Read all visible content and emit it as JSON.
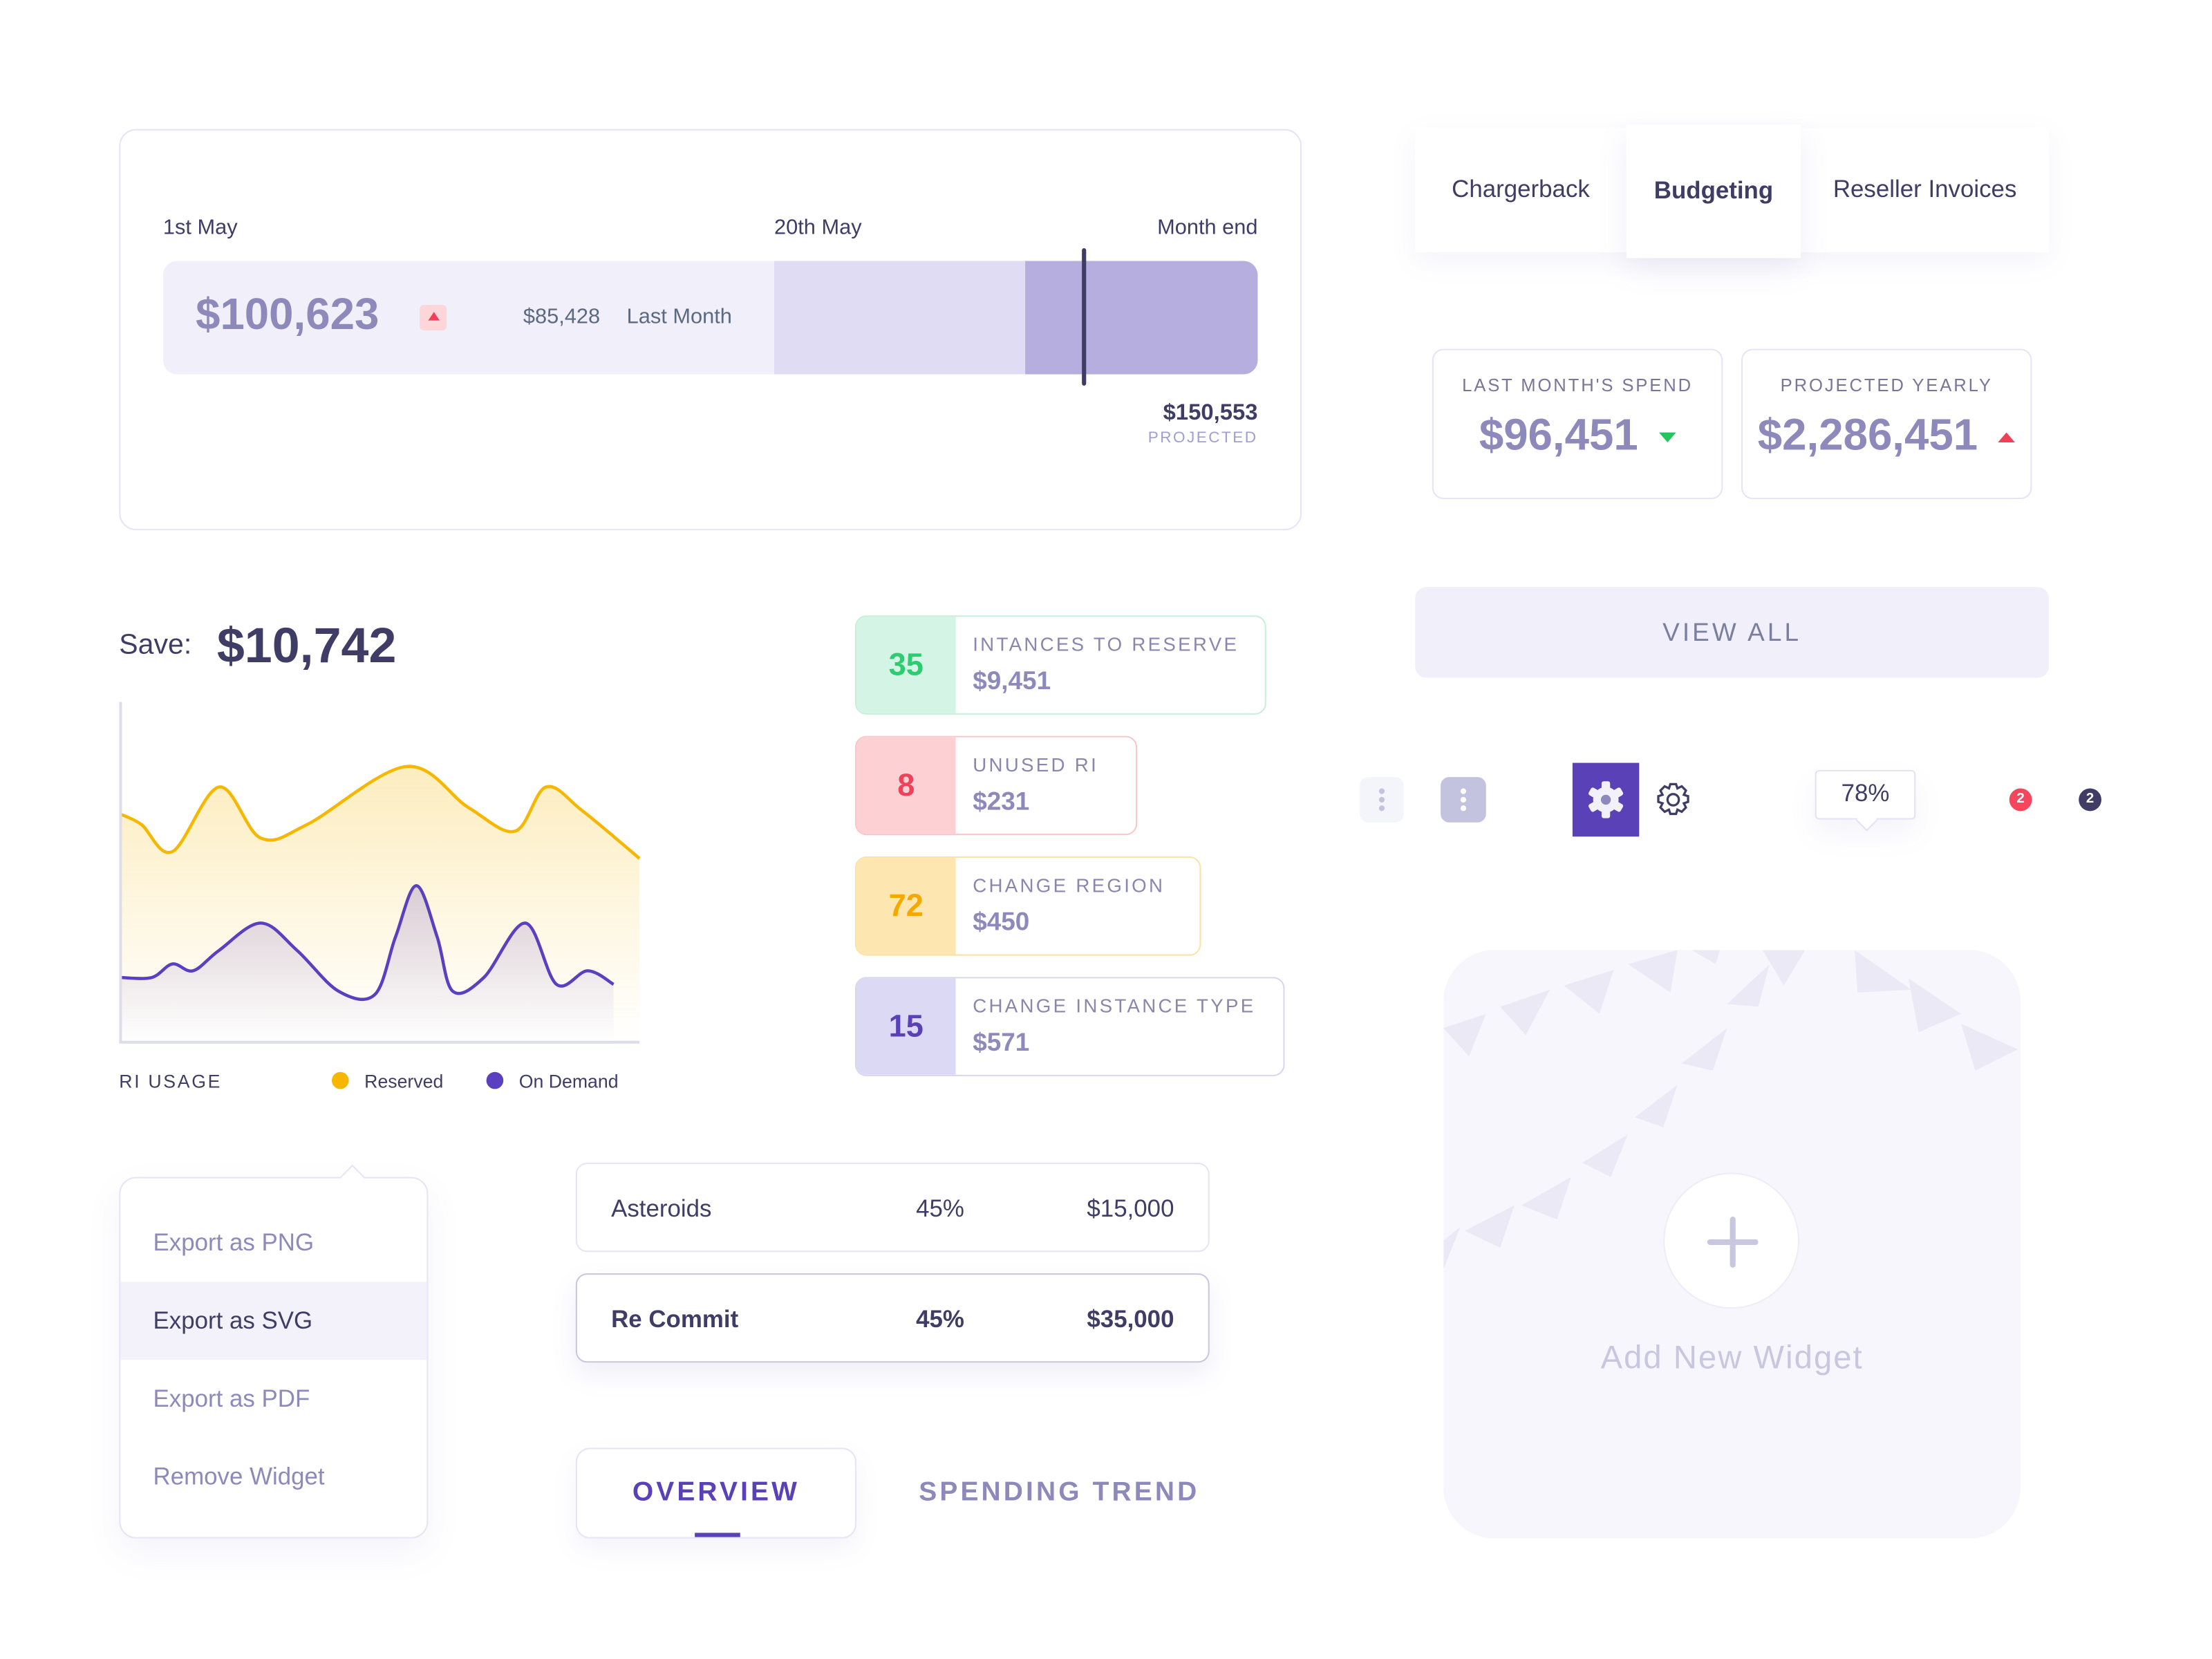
{
  "budget_card": {
    "start_label": "1st May",
    "mid_label": "20th May",
    "end_label": "Month end",
    "current_spend": "$100,623",
    "last_month_value": "$85,428",
    "last_month_label": "Last Month",
    "projected_value": "$150,553",
    "projected_label": "PROJECTED",
    "colors": {
      "track": "#f1eff9",
      "elapsed": "#e0dcf3",
      "projected": "#b6aedf",
      "marker": "#3f3d66"
    }
  },
  "tabs": [
    {
      "label": "Chargerback",
      "active": false
    },
    {
      "label": "Budgeting",
      "active": true
    },
    {
      "label": "Reseller Invoices",
      "active": false
    }
  ],
  "stats": [
    {
      "title": "LAST MONTH'S SPEND",
      "value": "$96,451",
      "trend": "down",
      "color": "#22c55e"
    },
    {
      "title": "PROJECTED YEARLY",
      "value": "$2,286,451",
      "trend": "up",
      "color": "#f0405a"
    }
  ],
  "view_all_label": "VIEW ALL",
  "icons_row": {
    "tooltip_value": "78%",
    "badge_red": "2",
    "badge_dark": "2",
    "accent": "#5a41b8"
  },
  "save": {
    "label": "Save:",
    "value": "$10,742"
  },
  "chart_data": {
    "type": "area",
    "title": "RI USAGE",
    "xlabel": "",
    "ylabel": "",
    "x": [
      0,
      4,
      10,
      19,
      27,
      36,
      55,
      67,
      76,
      82,
      89,
      100
    ],
    "ylim": [
      0,
      100
    ],
    "grid": false,
    "legend_placement": "bottom",
    "series": [
      {
        "name": "Reserved",
        "color": "#f5b700",
        "x": [
          0,
          4,
          10,
          19,
          27,
          36,
          55,
          67,
          76,
          82,
          89,
          100
        ],
        "values": [
          67,
          64,
          56,
          75,
          60,
          64,
          81,
          69,
          62,
          75,
          68,
          54
        ]
      },
      {
        "name": "On Demand",
        "color": "#5a3fc0",
        "x": [
          0,
          6,
          10,
          14,
          19,
          27,
          34,
          42,
          49,
          53,
          57,
          61,
          64,
          70,
          78,
          84,
          90,
          95
        ],
        "values": [
          19,
          19,
          23,
          21,
          27,
          35,
          27,
          15,
          14,
          31,
          46,
          31,
          15,
          19,
          35,
          17,
          21,
          17
        ]
      }
    ]
  },
  "recommendations": [
    {
      "count": "35",
      "title": "INTANCES TO RESERVE",
      "value": "$9,451"
    },
    {
      "count": "8",
      "title": "UNUSED RI",
      "value": "$231"
    },
    {
      "count": "72",
      "title": "CHANGE REGION",
      "value": "$450"
    },
    {
      "count": "15",
      "title": "CHANGE INSTANCE TYPE",
      "value": "$571"
    }
  ],
  "menu": [
    {
      "label": "Export as PNG"
    },
    {
      "label": "Export as SVG"
    },
    {
      "label": "Export as PDF"
    },
    {
      "label": "Remove Widget"
    }
  ],
  "table": [
    {
      "name": "Asteroids",
      "percent": "45%",
      "amount": "$15,000"
    },
    {
      "name": "Re Commit",
      "percent": "45%",
      "amount": "$35,000"
    }
  ],
  "bottom_tabs": [
    {
      "label": "OVERVIEW",
      "active": true
    },
    {
      "label": "SPENDING TREND",
      "active": false
    }
  ],
  "widget": {
    "label": "Add New Widget"
  }
}
